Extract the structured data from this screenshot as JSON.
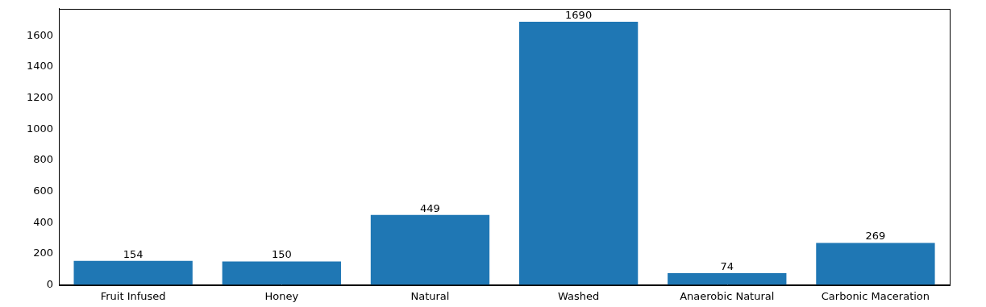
{
  "chart_data": {
    "type": "bar",
    "categories": [
      "Fruit Infused",
      "Honey",
      "Natural",
      "Washed",
      "Anaerobic Natural",
      "Carbonic Maceration"
    ],
    "values": [
      154,
      150,
      449,
      1690,
      74,
      269
    ],
    "color": "#1f77b4",
    "ylim": [
      0,
      1774.5
    ],
    "yticks": [
      0,
      200,
      400,
      600,
      800,
      1000,
      1200,
      1400,
      1600
    ],
    "grid": false,
    "data_labels": true
  }
}
